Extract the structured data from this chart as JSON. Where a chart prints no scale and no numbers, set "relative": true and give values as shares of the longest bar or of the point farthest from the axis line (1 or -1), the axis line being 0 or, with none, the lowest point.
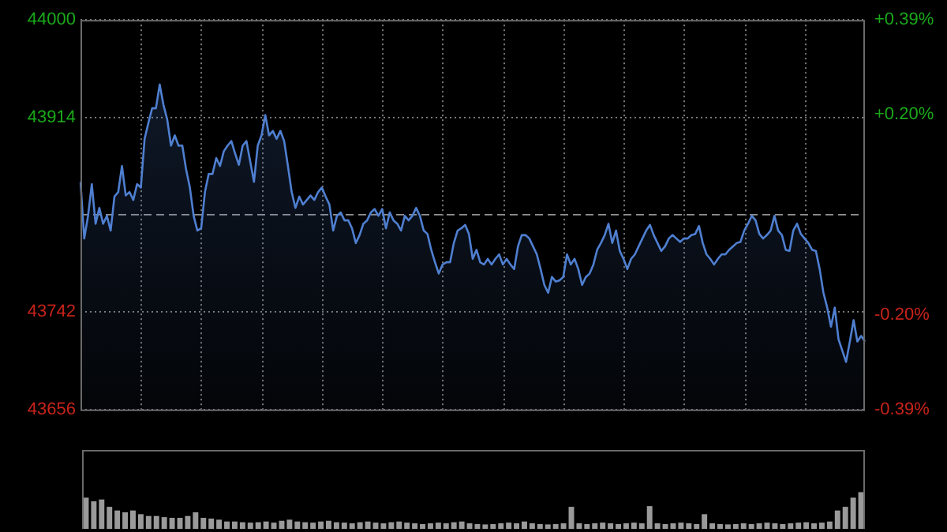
{
  "chart_data": [
    {
      "type": "area",
      "color": "#4f7fd0",
      "grid": true,
      "categories": [
        null,
        null,
        null,
        null,
        null,
        null,
        null,
        null,
        null,
        null,
        null,
        null,
        null,
        null,
        null,
        null,
        null,
        null,
        null,
        null,
        null,
        null,
        null,
        null,
        null,
        null,
        null,
        null,
        null,
        null,
        null,
        null,
        null,
        null,
        null,
        null,
        null,
        null,
        null,
        null,
        null,
        null,
        null,
        null,
        null,
        null,
        null,
        null,
        null,
        null,
        null,
        null,
        null,
        null,
        null,
        null,
        null,
        null,
        null,
        null,
        null,
        null,
        null,
        null,
        null,
        null,
        null,
        null,
        null,
        null,
        null,
        null,
        null,
        null,
        null,
        null,
        null,
        null,
        null,
        null,
        null,
        null,
        null,
        null,
        null,
        null,
        null,
        null,
        null,
        null,
        null,
        null,
        null,
        null,
        null,
        null,
        null,
        null,
        null,
        null,
        null,
        null,
        null,
        null,
        null,
        null,
        null,
        null,
        null,
        null,
        null,
        null,
        null,
        null,
        null,
        null,
        null,
        null,
        null,
        null,
        null,
        null,
        null,
        null,
        null,
        null,
        null,
        null,
        null,
        null,
        null,
        null,
        null,
        null,
        null,
        null,
        null,
        null,
        null,
        null,
        null,
        null,
        null,
        null,
        null,
        null,
        null,
        null,
        null,
        null,
        null,
        null,
        null,
        null,
        null,
        null,
        null,
        null,
        null,
        null,
        null,
        null,
        null,
        null,
        null,
        null,
        null,
        null,
        null,
        null,
        null,
        null,
        null,
        null,
        null,
        null,
        null,
        null,
        null,
        null,
        null,
        null,
        null,
        null,
        null,
        null,
        null,
        null,
        null,
        null,
        null,
        null,
        null,
        null,
        null,
        null,
        null,
        null,
        null,
        null,
        null,
        null,
        null,
        null,
        null,
        null,
        null,
        null,
        null
      ],
      "values": [
        43857,
        43807,
        43827,
        43855,
        43820,
        43834,
        43820,
        43827,
        43814,
        43844,
        43848,
        43871,
        43845,
        43848,
        43841,
        43855,
        43852,
        43895,
        43909,
        43922,
        43922,
        43943,
        43925,
        43912,
        43889,
        43898,
        43889,
        43889,
        43868,
        43852,
        43827,
        43814,
        43816,
        43848,
        43864,
        43864,
        43878,
        43871,
        43884,
        43889,
        43893,
        43882,
        43872,
        43889,
        43893,
        43875,
        43857,
        43889,
        43898,
        43916,
        43898,
        43902,
        43895,
        43902,
        43893,
        43871,
        43848,
        43834,
        43844,
        43837,
        43841,
        43845,
        43841,
        43848,
        43852,
        43844,
        43837,
        43814,
        43827,
        43830,
        43823,
        43823,
        43816,
        43803,
        43810,
        43820,
        43823,
        43830,
        43833,
        43827,
        43833,
        43816,
        43830,
        43823,
        43820,
        43814,
        43827,
        43823,
        43827,
        43834,
        43827,
        43814,
        43811,
        43797,
        43786,
        43776,
        43784,
        43786,
        43786,
        43803,
        43814,
        43816,
        43819,
        43811,
        43789,
        43797,
        43786,
        43784,
        43789,
        43784,
        43789,
        43793,
        43784,
        43789,
        43784,
        43780,
        43800,
        43810,
        43810,
        43807,
        43800,
        43793,
        43780,
        43766,
        43759,
        43773,
        43769,
        43770,
        43773,
        43793,
        43784,
        43789,
        43780,
        43766,
        43773,
        43776,
        43784,
        43797,
        43803,
        43810,
        43820,
        43803,
        43814,
        43796,
        43789,
        43780,
        43789,
        43793,
        43800,
        43807,
        43814,
        43819,
        43810,
        43803,
        43796,
        43800,
        43807,
        43810,
        43807,
        43804,
        43807,
        43807,
        43810,
        43811,
        43818,
        43803,
        43793,
        43789,
        43784,
        43789,
        43793,
        43793,
        43797,
        43800,
        43803,
        43804,
        43814,
        43820,
        43827,
        43823,
        43811,
        43807,
        43810,
        43814,
        43827,
        43814,
        43810,
        43797,
        43796,
        43814,
        43820,
        43811,
        43807,
        43803,
        43797,
        43796,
        43780,
        43759,
        43746,
        43729,
        43746,
        43718,
        43708,
        43698,
        43716,
        43735,
        43716,
        43721,
        43716
      ],
      "ylim": [
        43656,
        44000
      ],
      "yticks": [
        43656,
        43742,
        43914,
        44000
      ],
      "y2lim": [
        -0.39,
        0.39
      ],
      "y2ticks": [
        {
          "value": -0.39,
          "label": "-0.39%"
        },
        {
          "value": -0.2,
          "label": "-0.20%"
        },
        {
          "value": 0.2,
          "label": "+0.20%"
        },
        {
          "value": 0.39,
          "label": "+0.39%"
        }
      ],
      "ref_lines": [
        {
          "axis": "y",
          "value": 43828,
          "color": "#8a8a8a",
          "line_style": "dashed"
        }
      ]
    },
    {
      "type": "bar",
      "relative": true,
      "color": "#9a9a9a",
      "categories": [
        null,
        null,
        null,
        null,
        null,
        null,
        null,
        null,
        null,
        null,
        null,
        null,
        null,
        null,
        null,
        null,
        null,
        null,
        null,
        null,
        null,
        null,
        null,
        null,
        null,
        null,
        null,
        null,
        null,
        null,
        null,
        null,
        null,
        null,
        null,
        null,
        null,
        null,
        null,
        null,
        null,
        null,
        null,
        null,
        null,
        null,
        null,
        null,
        null,
        null,
        null,
        null,
        null,
        null,
        null,
        null,
        null,
        null,
        null,
        null,
        null,
        null,
        null,
        null,
        null,
        null,
        null,
        null,
        null,
        null,
        null,
        null,
        null,
        null,
        null,
        null,
        null,
        null,
        null,
        null,
        null,
        null,
        null,
        null,
        null,
        null,
        null,
        null,
        null,
        null,
        null,
        null,
        null,
        null,
        null,
        null,
        null,
        null,
        null,
        null
      ],
      "values": [
        0.85,
        0.75,
        0.8,
        0.6,
        0.5,
        0.45,
        0.5,
        0.4,
        0.35,
        0.35,
        0.32,
        0.3,
        0.3,
        0.35,
        0.45,
        0.3,
        0.28,
        0.25,
        0.2,
        0.2,
        0.18,
        0.17,
        0.18,
        0.2,
        0.17,
        0.22,
        0.25,
        0.2,
        0.18,
        0.17,
        0.2,
        0.22,
        0.18,
        0.17,
        0.15,
        0.18,
        0.2,
        0.17,
        0.15,
        0.18,
        0.2,
        0.17,
        0.15,
        0.13,
        0.15,
        0.17,
        0.15,
        0.18,
        0.2,
        0.15,
        0.13,
        0.12,
        0.13,
        0.15,
        0.17,
        0.15,
        0.2,
        0.15,
        0.13,
        0.12,
        0.13,
        0.15,
        0.6,
        0.15,
        0.13,
        0.15,
        0.17,
        0.15,
        0.13,
        0.15,
        0.17,
        0.15,
        0.62,
        0.15,
        0.13,
        0.15,
        0.17,
        0.15,
        0.13,
        0.4,
        0.15,
        0.13,
        0.12,
        0.13,
        0.15,
        0.13,
        0.15,
        0.17,
        0.15,
        0.13,
        0.15,
        0.17,
        0.18,
        0.15,
        0.17,
        0.2,
        0.5,
        0.6,
        0.85,
        1
      ]
    }
  ]
}
